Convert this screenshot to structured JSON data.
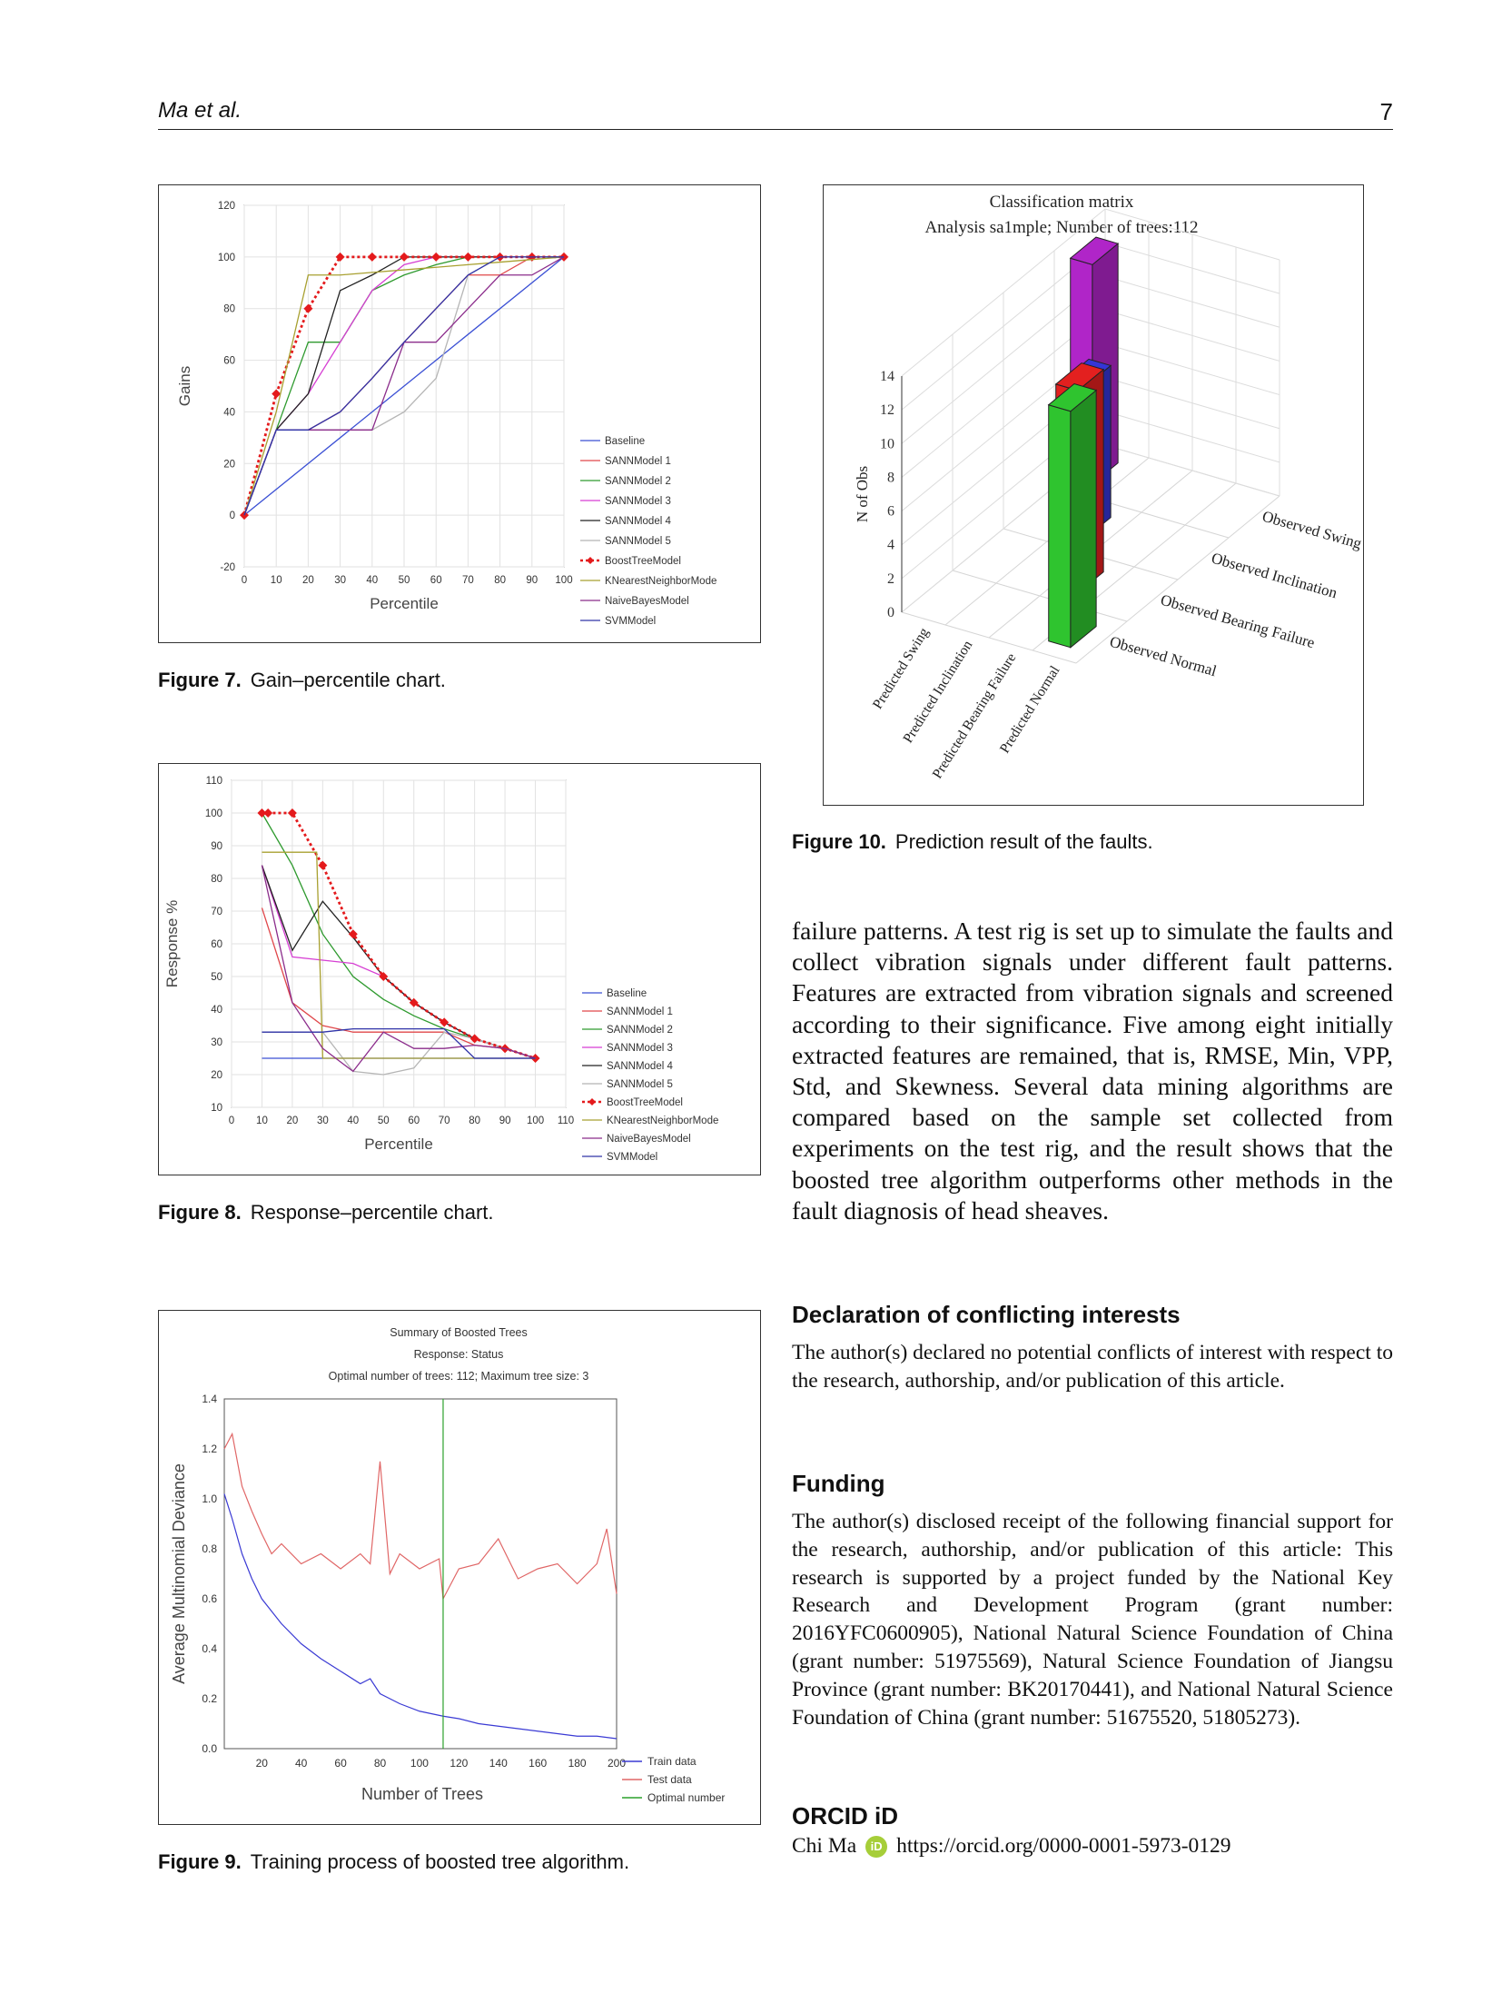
{
  "header": {
    "author": "Ma et al.",
    "page": "7"
  },
  "fig7": {
    "caption_label": "Figure 7.",
    "caption_text": "Gain–percentile chart.",
    "chart_data": {
      "type": "line",
      "xlabel": "Percentile",
      "ylabel": "Gains",
      "xlim": [
        0,
        100
      ],
      "ylim": [
        -20,
        120
      ],
      "xticks": [
        0,
        10,
        20,
        30,
        40,
        50,
        60,
        70,
        80,
        90,
        100
      ],
      "yticks": [
        -20,
        0,
        20,
        40,
        60,
        80,
        100,
        120
      ],
      "grid": true,
      "legend_position": "right",
      "series": [
        {
          "name": "Baseline",
          "color": "#3a4fd4",
          "x": [
            0,
            100
          ],
          "y": [
            0,
            100
          ]
        },
        {
          "name": "SANNModel 1",
          "color": "#e0474a",
          "x": [
            0,
            10,
            20,
            30,
            40,
            50,
            60,
            70,
            80,
            90,
            100
          ],
          "y": [
            0,
            33,
            33,
            40,
            53,
            67,
            80,
            93,
            93,
            100,
            100
          ]
        },
        {
          "name": "SANNModel 2",
          "color": "#2e9a2e",
          "x": [
            0,
            10,
            20,
            30,
            40,
            50,
            60,
            70,
            80,
            90,
            100
          ],
          "y": [
            0,
            33,
            67,
            67,
            87,
            93,
            97,
            100,
            100,
            100,
            100
          ]
        },
        {
          "name": "SANNModel 3",
          "color": "#d63fd3",
          "x": [
            0,
            10,
            20,
            30,
            40,
            50,
            60,
            70,
            80,
            90,
            100
          ],
          "y": [
            0,
            33,
            47,
            67,
            87,
            97,
            100,
            100,
            100,
            100,
            100
          ]
        },
        {
          "name": "SANNModel 4",
          "color": "#222222",
          "x": [
            0,
            10,
            20,
            30,
            40,
            50,
            60,
            70,
            80,
            90,
            100
          ],
          "y": [
            0,
            33,
            47,
            87,
            93,
            100,
            100,
            100,
            100,
            100,
            100
          ]
        },
        {
          "name": "SANNModel 5",
          "color": "#b5b5b5",
          "x": [
            0,
            10,
            20,
            30,
            40,
            50,
            60,
            70,
            80,
            90,
            100
          ],
          "y": [
            0,
            33,
            33,
            33,
            33,
            40,
            53,
            93,
            100,
            100,
            100
          ]
        },
        {
          "name": "BoostTreeModel",
          "color": "#e41a1c",
          "dashed": true,
          "markers": true,
          "x": [
            0,
            10,
            20,
            30,
            40,
            50,
            60,
            70,
            80,
            90,
            100
          ],
          "y": [
            0,
            47,
            80,
            100,
            100,
            100,
            100,
            100,
            100,
            100,
            100
          ]
        },
        {
          "name": "KNearestNeighborMode",
          "color": "#a8a030",
          "x": [
            0,
            10,
            20,
            30,
            40,
            50,
            60,
            70,
            80,
            90,
            100
          ],
          "y": [
            0,
            40,
            93,
            93,
            94,
            95,
            96,
            97,
            98,
            99,
            100
          ]
        },
        {
          "name": "NaiveBayesModel",
          "color": "#8b2c8b",
          "x": [
            0,
            10,
            20,
            30,
            40,
            50,
            60,
            70,
            80,
            90,
            100
          ],
          "y": [
            0,
            33,
            33,
            33,
            33,
            67,
            67,
            80,
            93,
            93,
            100
          ]
        },
        {
          "name": "SVMModel",
          "color": "#3034a8",
          "x": [
            0,
            10,
            20,
            30,
            40,
            50,
            60,
            70,
            80,
            90,
            100
          ],
          "y": [
            0,
            33,
            33,
            40,
            53,
            67,
            80,
            93,
            100,
            100,
            100
          ]
        }
      ]
    }
  },
  "fig8": {
    "caption_label": "Figure 8.",
    "caption_text": "Response–percentile chart.",
    "chart_data": {
      "type": "line",
      "xlabel": "Percentile",
      "ylabel": "Response %",
      "xlim": [
        0,
        110
      ],
      "ylim": [
        10,
        110
      ],
      "xticks": [
        0,
        10,
        20,
        30,
        40,
        50,
        60,
        70,
        80,
        90,
        100,
        110
      ],
      "yticks": [
        10,
        20,
        30,
        40,
        50,
        60,
        70,
        80,
        90,
        100,
        110
      ],
      "grid": true,
      "legend_position": "right",
      "series": [
        {
          "name": "Baseline",
          "color": "#3a4fd4",
          "x": [
            10,
            100
          ],
          "y": [
            25,
            25
          ]
        },
        {
          "name": "SANNModel 1",
          "color": "#e0474a",
          "x": [
            10,
            20,
            30,
            40,
            50,
            60,
            70,
            80,
            90,
            100
          ],
          "y": [
            71,
            42,
            35,
            33,
            33,
            33,
            33,
            29,
            28,
            25
          ]
        },
        {
          "name": "SANNModel 2",
          "color": "#2e9a2e",
          "x": [
            10,
            20,
            30,
            40,
            50,
            60,
            70,
            80,
            90,
            100
          ],
          "y": [
            100,
            84,
            63,
            50,
            43,
            38,
            34,
            31,
            28,
            25
          ]
        },
        {
          "name": "SANNModel 3",
          "color": "#d63fd3",
          "x": [
            10,
            20,
            30,
            40,
            50,
            60,
            70,
            80,
            90,
            100
          ],
          "y": [
            84,
            56,
            55,
            54,
            50,
            42,
            36,
            31,
            28,
            25
          ]
        },
        {
          "name": "SANNModel 4",
          "color": "#222222",
          "x": [
            10,
            20,
            30,
            40,
            50,
            60,
            70,
            80,
            90,
            100
          ],
          "y": [
            84,
            58,
            73,
            62,
            50,
            42,
            36,
            31,
            28,
            25
          ]
        },
        {
          "name": "SANNModel 5",
          "color": "#b5b5b5",
          "x": [
            10,
            20,
            30,
            40,
            50,
            60,
            70,
            80,
            90,
            100
          ],
          "y": [
            33,
            33,
            33,
            21,
            20,
            22,
            33,
            31,
            28,
            25
          ]
        },
        {
          "name": "BoostTreeModel",
          "color": "#e41a1c",
          "dashed": true,
          "markers": true,
          "x": [
            10,
            12,
            20,
            30,
            40,
            50,
            60,
            70,
            80,
            90,
            100
          ],
          "y": [
            100,
            100,
            100,
            84,
            63,
            50,
            42,
            36,
            31,
            28,
            25
          ]
        },
        {
          "name": "KNearestNeighborMode",
          "color": "#a8a030",
          "x": [
            10,
            28,
            30,
            40,
            50,
            60,
            70,
            80,
            90,
            100
          ],
          "y": [
            88,
            88,
            25,
            25,
            25,
            25,
            25,
            25,
            25,
            25
          ]
        },
        {
          "name": "NaiveBayesModel",
          "color": "#8b2c8b",
          "x": [
            10,
            20,
            30,
            40,
            50,
            60,
            70,
            80,
            90,
            100
          ],
          "y": [
            84,
            42,
            28,
            21,
            33,
            28,
            28,
            29,
            28,
            25
          ]
        },
        {
          "name": "SVMModel",
          "color": "#3034a8",
          "x": [
            10,
            20,
            30,
            40,
            50,
            60,
            70,
            80,
            90,
            100
          ],
          "y": [
            33,
            33,
            33,
            34,
            34,
            34,
            34,
            25,
            25,
            25
          ]
        }
      ]
    }
  },
  "fig9": {
    "caption_label": "Figure 9.",
    "caption_text": "Training process of boosted tree algorithm.",
    "title_lines": [
      "Summary of Boosted Trees",
      "Response: Status",
      "Optimal number of trees: 112; Maximum tree size: 3"
    ],
    "chart_data": {
      "type": "line",
      "xlabel": "Number of Trees",
      "ylabel": "Average Multinomial Deviance",
      "xlim": [
        1,
        200
      ],
      "ylim": [
        0,
        1.4
      ],
      "xticks": [
        20,
        40,
        60,
        80,
        100,
        120,
        140,
        160,
        180,
        200
      ],
      "yticks": [
        "0.0",
        "0.2",
        "0.4",
        "0.6",
        "0.8",
        "1.0",
        "1.2",
        "1.4"
      ],
      "legend_position": "bottom-right",
      "optimal_number": 112,
      "series": [
        {
          "name": "Train data",
          "color": "#3a3ad4",
          "x": [
            1,
            5,
            10,
            15,
            20,
            30,
            40,
            50,
            60,
            70,
            75,
            80,
            90,
            100,
            112,
            120,
            130,
            140,
            150,
            160,
            170,
            180,
            190,
            200
          ],
          "y": [
            1.02,
            0.92,
            0.78,
            0.68,
            0.6,
            0.5,
            0.42,
            0.36,
            0.31,
            0.26,
            0.28,
            0.22,
            0.18,
            0.15,
            0.13,
            0.12,
            0.1,
            0.09,
            0.08,
            0.07,
            0.06,
            0.05,
            0.05,
            0.04
          ]
        },
        {
          "name": "Test data",
          "color": "#e06666",
          "x": [
            1,
            5,
            10,
            15,
            20,
            25,
            30,
            40,
            50,
            60,
            70,
            75,
            80,
            85,
            90,
            100,
            110,
            112,
            120,
            130,
            140,
            150,
            160,
            170,
            180,
            190,
            195,
            200
          ],
          "y": [
            1.2,
            1.26,
            1.05,
            0.95,
            0.86,
            0.78,
            0.82,
            0.74,
            0.78,
            0.72,
            0.78,
            0.74,
            1.15,
            0.7,
            0.78,
            0.72,
            0.76,
            0.6,
            0.72,
            0.74,
            0.84,
            0.68,
            0.72,
            0.74,
            0.66,
            0.74,
            0.88,
            0.62
          ]
        },
        {
          "name": "Optimal number",
          "color": "#2ca02c",
          "x": [
            112,
            112
          ],
          "y": [
            0,
            1.4
          ]
        }
      ]
    }
  },
  "fig10": {
    "caption_label": "Figure 10.",
    "caption_text": "Prediction result of the faults.",
    "title_lines": [
      "Classification matrix",
      "Analysis sa1mple; Number of trees:112"
    ],
    "chart_data": {
      "type": "bar",
      "zlabel": "N of Obs",
      "zticks": [
        0,
        2,
        4,
        6,
        8,
        10,
        12,
        14
      ],
      "predicted_labels": [
        "Predicted Swing",
        "Predicted Inclination",
        "Predicted Bearing Failure",
        "Predicted Normal"
      ],
      "observed_labels": [
        "Observed Swing",
        "Observed Inclination",
        "Observed Bearing Failure",
        "Observed Normal"
      ],
      "bars": [
        {
          "predicted": "Predicted Swing",
          "observed": "Observed Swing",
          "value": 13,
          "color": "#b025c8"
        },
        {
          "predicted": "Predicted Inclination",
          "observed": "Observed Inclination",
          "value": 9,
          "color": "#3535d6"
        },
        {
          "predicted": "Predicted Bearing Failure",
          "observed": "Observed Bearing Failure",
          "value": 12,
          "color": "#e3201f"
        },
        {
          "predicted": "Predicted Normal",
          "observed": "Observed Normal",
          "value": 14,
          "color": "#2fc42f"
        }
      ]
    }
  },
  "body": {
    "paragraph": "failure patterns. A test rig is set up to simulate the faults and collect vibration signals under different fault patterns. Features are extracted from vibration signals and screened according to their significance. Five among eight initially extracted features are remained, that is, RMSE, Min, VPP, Std, and Skewness. Several data mining algorithms are compared based on the sample set collected from experiments on the test rig, and the result shows that the boosted tree algorithm outperforms other methods in the fault diagnosis of head sheaves.",
    "conflict_heading": "Declaration of conflicting interests",
    "conflict_text": "The author(s) declared no potential conflicts of interest with respect to the research, authorship, and/or publication of this article.",
    "funding_heading": "Funding",
    "funding_text": "The author(s) disclosed receipt of the following financial support for the research, authorship, and/or publication of this article: This research is supported by a project funded by the National Key Research and Development Program (grant number: 2016YFC0600905), National Natural Science Foundation of China (grant number: 51975569), Natural Science Foundation of Jiangsu Province (grant number: BK20170441), and National Natural Science Foundation of China (grant number: 51675520, 51805273).",
    "orcid_heading": "ORCID iD",
    "orcid_name": "Chi Ma",
    "orcid_badge": "iD",
    "orcid_url": "https://orcid.org/0000-0001-5973-0129"
  }
}
